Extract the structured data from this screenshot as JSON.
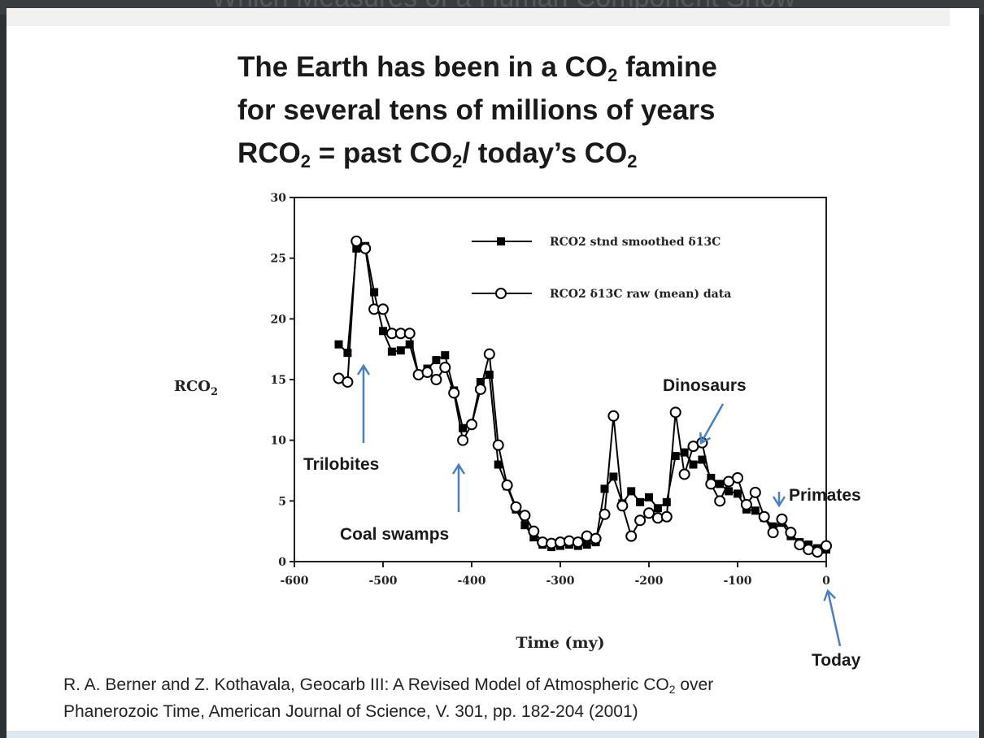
{
  "slide": {
    "background_header_text": "Which Measures of a Human Component Show",
    "title_lines": [
      [
        "The Earth has been in a CO",
        "2",
        " famine"
      ],
      [
        "for several tens of millions of years"
      ],
      [
        "RCO",
        "2",
        " = past CO",
        "2",
        "/ today’s CO",
        "2"
      ]
    ],
    "citation_lines": [
      [
        "R. A. Berner and Z. Kothavala, Geocarb III: A Revised Model of Atmospheric CO",
        "2",
        " over"
      ],
      [
        "Phanerozoic Time,  American Journal of Science, V. 301, pp. 182-204 (2001)"
      ]
    ]
  },
  "colors": {
    "series_stroke": "#000000",
    "arrow": "#4a7fc1",
    "annotation_text": "#1a1a1a"
  },
  "chart_data": {
    "type": "line",
    "xlabel": "Time  (my)",
    "ylabel": "RCO2",
    "xlim": [
      -600,
      0
    ],
    "ylim": [
      0,
      30
    ],
    "x_ticks": [
      "-600",
      "-500",
      "-400",
      "-300",
      "-200",
      "-100",
      "0"
    ],
    "y_ticks": [
      "0",
      "5",
      "10",
      "15",
      "20",
      "25",
      "30"
    ],
    "legend_position": "top-right",
    "legend": [
      {
        "text": "RCO2 stnd smoothed δ13C",
        "marker": "filled-square"
      },
      {
        "text": "RCO2 δ13C raw (mean) data",
        "marker": "open-circle"
      }
    ],
    "series": [
      {
        "name": "RCO2 stnd smoothed δ13C",
        "marker": "filled-square",
        "x": [
          -550,
          -540,
          -530,
          -520,
          -510,
          -500,
          -490,
          -480,
          -470,
          -460,
          -450,
          -440,
          -430,
          -420,
          -410,
          -400,
          -390,
          -380,
          -370,
          -360,
          -350,
          -340,
          -330,
          -320,
          -310,
          -300,
          -290,
          -280,
          -270,
          -260,
          -250,
          -240,
          -230,
          -220,
          -210,
          -200,
          -190,
          -180,
          -170,
          -160,
          -150,
          -140,
          -130,
          -120,
          -110,
          -100,
          -90,
          -80,
          -70,
          -60,
          -50,
          -40,
          -30,
          -20,
          -10,
          0
        ],
        "y": [
          17.9,
          17.2,
          25.8,
          26.0,
          22.2,
          19.0,
          17.3,
          17.4,
          17.9,
          15.4,
          15.9,
          16.6,
          17.0,
          14.1,
          11.0,
          11.3,
          14.8,
          15.4,
          8.0,
          6.2,
          4.3,
          3.0,
          2.0,
          1.4,
          1.2,
          1.3,
          1.4,
          1.3,
          1.4,
          1.6,
          6.0,
          7.0,
          4.8,
          5.8,
          4.9,
          5.3,
          4.4,
          4.9,
          8.7,
          9.0,
          8.0,
          8.4,
          6.9,
          6.4,
          5.8,
          5.6,
          4.3,
          4.2,
          3.6,
          2.9,
          3.2,
          2.1,
          1.6,
          1.4,
          1.1,
          1.0
        ]
      },
      {
        "name": "RCO2 δ13C raw (mean) data",
        "marker": "open-circle",
        "x": [
          -550,
          -540,
          -530,
          -520,
          -510,
          -500,
          -490,
          -480,
          -470,
          -460,
          -450,
          -440,
          -430,
          -420,
          -410,
          -400,
          -390,
          -380,
          -370,
          -360,
          -350,
          -340,
          -330,
          -320,
          -310,
          -300,
          -290,
          -280,
          -270,
          -260,
          -250,
          -240,
          -230,
          -220,
          -210,
          -200,
          -190,
          -180,
          -170,
          -160,
          -150,
          -140,
          -130,
          -120,
          -110,
          -100,
          -90,
          -80,
          -70,
          -60,
          -50,
          -40,
          -30,
          -20,
          -10,
          0
        ],
        "y": [
          15.1,
          14.8,
          26.4,
          25.8,
          20.8,
          20.8,
          18.8,
          18.8,
          18.8,
          15.4,
          15.6,
          15.0,
          16.0,
          13.9,
          10.0,
          11.3,
          14.2,
          17.1,
          9.6,
          6.3,
          4.5,
          3.8,
          2.5,
          1.6,
          1.5,
          1.6,
          1.7,
          1.6,
          2.1,
          1.9,
          3.9,
          12.0,
          4.6,
          2.1,
          3.4,
          4.0,
          3.6,
          3.7,
          12.3,
          7.2,
          9.5,
          9.8,
          6.4,
          5.0,
          6.6,
          6.9,
          4.7,
          5.7,
          3.7,
          2.4,
          3.5,
          2.4,
          1.4,
          1.0,
          0.8,
          1.3
        ]
      }
    ],
    "annotations": [
      {
        "text": "Trilobites",
        "arrow_at_x": -525
      },
      {
        "text": "Coal swamps",
        "arrow_at_x": -416
      },
      {
        "text": "Dinosaurs",
        "arrow_at_x": -140
      },
      {
        "text": "Primates",
        "arrow_at_x": -52
      },
      {
        "text": "Today",
        "arrow_at_x": 0
      }
    ]
  }
}
